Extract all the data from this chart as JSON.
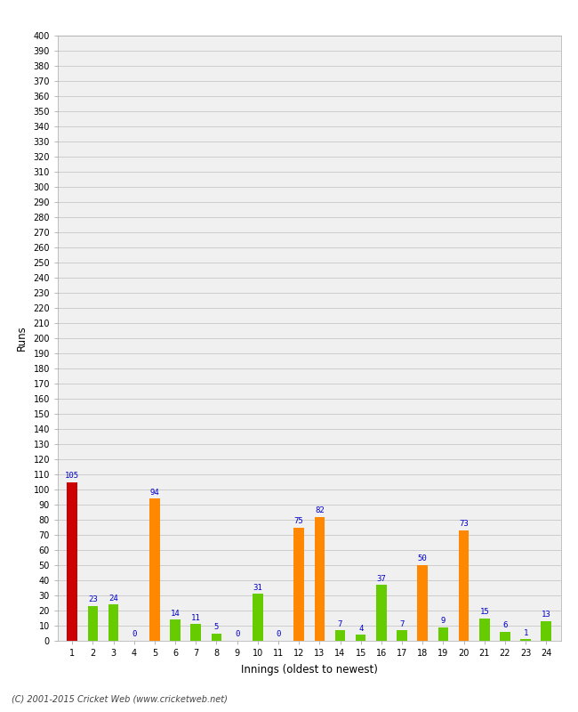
{
  "innings": [
    1,
    2,
    3,
    4,
    5,
    6,
    7,
    8,
    9,
    10,
    11,
    12,
    13,
    14,
    15,
    16,
    17,
    18,
    19,
    20,
    21,
    22,
    23,
    24
  ],
  "values": [
    105,
    23,
    24,
    0,
    94,
    14,
    11,
    5,
    0,
    31,
    0,
    75,
    82,
    7,
    4,
    37,
    7,
    50,
    9,
    73,
    15,
    6,
    1,
    13
  ],
  "colors": [
    "#cc0000",
    "#66cc00",
    "#66cc00",
    "#66cc00",
    "#ff8800",
    "#66cc00",
    "#66cc00",
    "#66cc00",
    "#66cc00",
    "#66cc00",
    "#66cc00",
    "#ff8800",
    "#ff8800",
    "#66cc00",
    "#66cc00",
    "#66cc00",
    "#66cc00",
    "#ff8800",
    "#66cc00",
    "#ff8800",
    "#66cc00",
    "#66cc00",
    "#66cc00",
    "#66cc00"
  ],
  "xlabel": "Innings (oldest to newest)",
  "ylabel": "Runs",
  "ylim": [
    0,
    400
  ],
  "yticks": [
    0,
    10,
    20,
    30,
    40,
    50,
    60,
    70,
    80,
    90,
    100,
    110,
    120,
    130,
    140,
    150,
    160,
    170,
    180,
    190,
    200,
    210,
    220,
    230,
    240,
    250,
    260,
    270,
    280,
    290,
    300,
    310,
    320,
    330,
    340,
    350,
    360,
    370,
    380,
    390,
    400
  ],
  "label_color": "#0000cc",
  "label_fontsize": 6.5,
  "bg_color": "#f0f0f0",
  "grid_color": "#cccccc",
  "footer": "(C) 2001-2015 Cricket Web (www.cricketweb.net)",
  "bar_width": 0.5
}
